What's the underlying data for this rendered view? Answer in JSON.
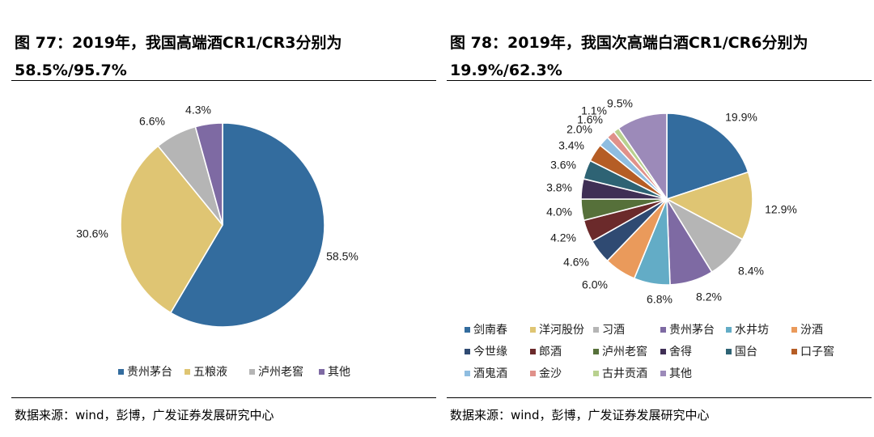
{
  "chart_data": [
    {
      "type": "pie",
      "title": "图 77：2019年，我国高端酒CR1/CR3分别为58.5%/95.7%",
      "title_line1": "图 77：2019年，我国高端酒CR1/CR3分别为",
      "title_line2": "58.5%/95.7%",
      "categories": [
        "贵州茅台",
        "五粮液",
        "泸州老窖",
        "其他"
      ],
      "values": [
        58.5,
        30.6,
        6.6,
        4.3
      ],
      "labels": [
        "58.5%",
        "30.6%",
        "6.6%",
        "4.3%"
      ],
      "colors": [
        "#336c9e",
        "#dfc573",
        "#b5b5b5",
        "#7e6aa3"
      ],
      "legend_position": "bottom",
      "source": "数据来源：wind，彭博，广发证券发展研究中心"
    },
    {
      "type": "pie",
      "title": "图 78：2019年，我国次高端白酒CR1/CR6分别为19.9%/62.3%",
      "title_line1": "图 78：2019年，我国次高端白酒CR1/CR6分别为",
      "title_line2": "19.9%/62.3%",
      "categories": [
        "剑南春",
        "洋河股份",
        "习酒",
        "贵州茅台",
        "水井坊",
        "汾酒",
        "今世缘",
        "郎酒",
        "泸州老窖",
        "舍得",
        "国台",
        "口子窖",
        "酒鬼酒",
        "金沙",
        "古井贡酒",
        "其他"
      ],
      "values": [
        19.9,
        12.9,
        8.4,
        8.2,
        6.8,
        6.0,
        4.6,
        4.2,
        4.0,
        3.8,
        3.6,
        3.4,
        2.0,
        1.6,
        1.1,
        9.5
      ],
      "labels": [
        "19.9%",
        "12.9%",
        "8.4%",
        "8.2%",
        "6.8%",
        "6.0%",
        "4.6%",
        "4.2%",
        "4.0%",
        "3.8%",
        "3.6%",
        "3.4%",
        "2.0%",
        "1.6%",
        "1.1%",
        "9.5%"
      ],
      "colors": [
        "#336c9e",
        "#dfc573",
        "#b5b5b5",
        "#7e6aa3",
        "#63acc6",
        "#ea9a5b",
        "#2f4a72",
        "#6b2a2b",
        "#56703a",
        "#3f2f55",
        "#2e6374",
        "#b55d25",
        "#8fbde0",
        "#e0918a",
        "#b9d18f",
        "#9c8ab9"
      ],
      "legend_position": "bottom",
      "source": "数据来源：wind，彭博，广发证券发展研究中心"
    }
  ]
}
